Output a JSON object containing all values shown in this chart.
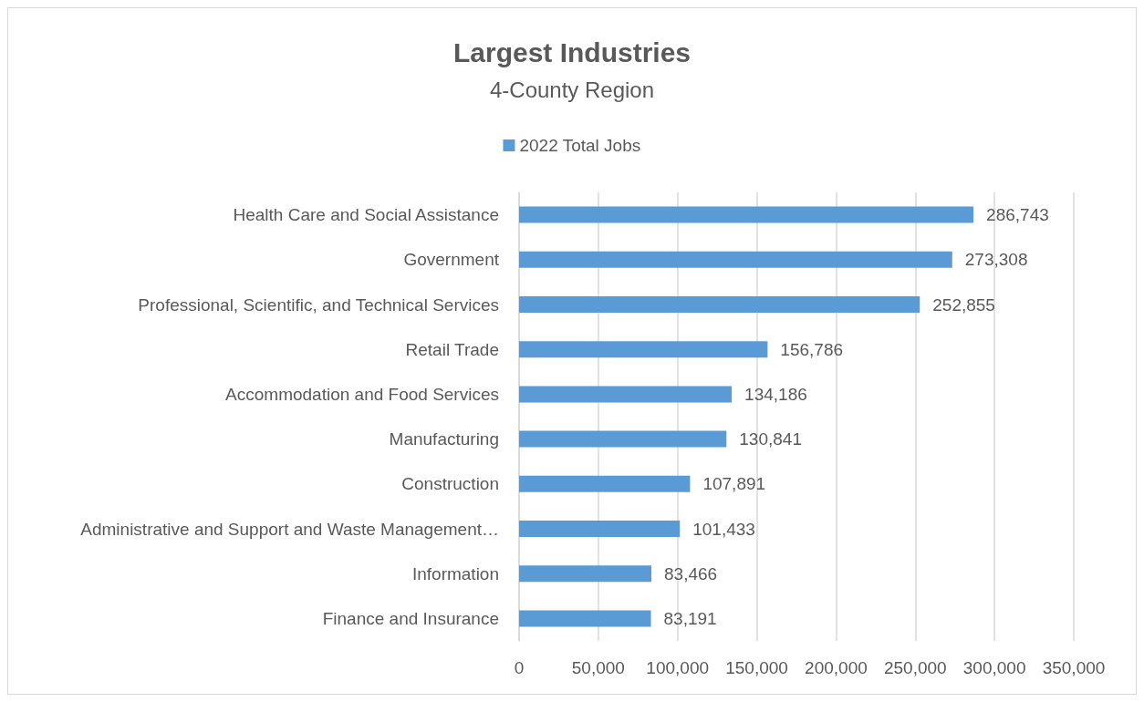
{
  "chart_data": {
    "type": "bar",
    "orientation": "horizontal",
    "title": "Largest Industries",
    "subtitle": "4-County Region",
    "categories": [
      "Health Care and Social Assistance",
      "Government",
      "Professional, Scientific, and Technical Services",
      "Retail Trade",
      "Accommodation and Food Services",
      "Manufacturing",
      "Construction",
      "Administrative and Support and Waste Management…",
      "Information",
      "Finance and Insurance"
    ],
    "series": [
      {
        "name": "2022 Total Jobs",
        "color": "#5b9bd5",
        "values": [
          286743,
          273308,
          252855,
          156786,
          134186,
          130841,
          107891,
          101433,
          83466,
          83191
        ],
        "value_labels": [
          "286,743",
          "273,308",
          "252,855",
          "156,786",
          "134,186",
          "130,841",
          "107,891",
          "101,433",
          "83,466",
          "83,191"
        ]
      }
    ],
    "xlim": [
      0,
      350000
    ],
    "xticks": [
      0,
      {
        "value": 50000,
        "label": "50,000"
      },
      {
        "value": 100000,
        "label": "100,000"
      },
      {
        "value": 150000,
        "label": "150,000"
      },
      {
        "value": 200000,
        "label": "200,000"
      },
      {
        "value": 250000,
        "label": "250,000"
      },
      {
        "value": 300000,
        "label": "300,000"
      },
      {
        "value": 350000,
        "label": "350,000"
      }
    ],
    "grid": "x",
    "legend": "top"
  }
}
